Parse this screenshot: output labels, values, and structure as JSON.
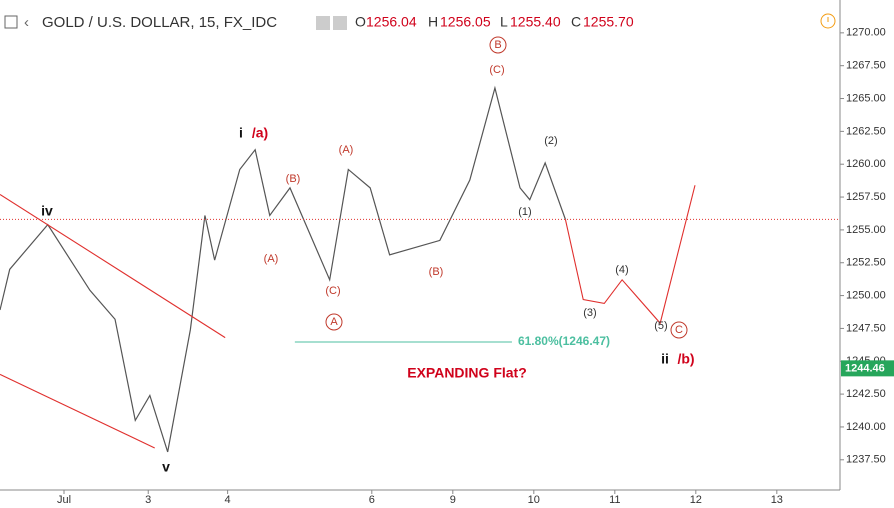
{
  "header": {
    "symbol": "GOLD / U.S. DOLLAR, 15, FX_IDC",
    "o": "O",
    "open": "1256.04",
    "h": "H",
    "high": "1256.05",
    "l": "L",
    "low": "1255.40",
    "c": "C",
    "close": "1255.70"
  },
  "chart_data": {
    "type": "line",
    "xlim": [
      -0.79,
      9.58
    ],
    "ylim": [
      1235.2,
      1272.5
    ],
    "xticks": [
      {
        "value": 0,
        "label": "Jul"
      },
      {
        "value": 1.04,
        "label": "3"
      },
      {
        "value": 2.02,
        "label": "4"
      },
      {
        "value": 3.8,
        "label": "6"
      },
      {
        "value": 4.8,
        "label": "9"
      },
      {
        "value": 5.8,
        "label": "10"
      },
      {
        "value": 6.8,
        "label": "11"
      },
      {
        "value": 7.8,
        "label": "12"
      },
      {
        "value": 8.8,
        "label": "13"
      }
    ],
    "yticks": [
      {
        "value": 1237.5,
        "label": "1237.50"
      },
      {
        "value": 1240,
        "label": "1240.00"
      },
      {
        "value": 1242.5,
        "label": "1242.50"
      },
      {
        "value": 1245,
        "label": "1245.00"
      },
      {
        "value": 1247.5,
        "label": "1247.50"
      },
      {
        "value": 1250,
        "label": "1250.00"
      },
      {
        "value": 1252.5,
        "label": "1252.50"
      },
      {
        "value": 1255,
        "label": "1255.00"
      },
      {
        "value": 1257.5,
        "label": "1257.50"
      },
      {
        "value": 1260,
        "label": "1260.00"
      },
      {
        "value": 1262.5,
        "label": "1262.50"
      },
      {
        "value": 1265,
        "label": "1265.00"
      },
      {
        "value": 1267.5,
        "label": "1267.50"
      },
      {
        "value": 1270,
        "label": "1270.00"
      }
    ],
    "series": [
      {
        "color": "#555555",
        "x": [
          -0.79,
          -0.67,
          -0.2,
          0.32,
          0.63,
          0.88,
          1.06,
          1.28,
          1.56,
          1.74,
          1.86,
          2.17,
          2.36,
          2.54,
          2.79,
          3.28,
          3.51,
          3.78,
          4.02,
          4.64,
          5.01,
          5.32,
          5.63,
          5.75,
          5.94,
          6.19
        ],
        "values": [
          1248.9,
          1252,
          1255.4,
          1250.4,
          1248.2,
          1240.5,
          1242.4,
          1238.1,
          1247.4,
          1256.1,
          1252.7,
          1259.6,
          1261.1,
          1256.1,
          1258.2,
          1251.2,
          1259.6,
          1258.2,
          1253.1,
          1254.2,
          1258.8,
          1265.8,
          1258.2,
          1257.3,
          1260.1,
          1255.8
        ]
      },
      {
        "color": "#e0302e",
        "x": [
          6.19,
          6.41,
          6.67,
          6.89,
          7.36,
          7.79
        ],
        "values": [
          1255.8,
          1249.7,
          1249.4,
          1251.2,
          1247.9,
          1258.4
        ]
      },
      {
        "color": "#e0302e",
        "x": [
          -0.79,
          1.99
        ],
        "values": [
          1257.7,
          1246.8
        ]
      },
      {
        "color": "#e0302e",
        "x": [
          -0.79,
          1.12
        ],
        "values": [
          1244.0,
          1238.4
        ]
      }
    ],
    "fib": {
      "value": 1246.47,
      "label": "61.80%(1246.47)",
      "x": [
        2.85,
        5.53
      ],
      "color": "#4cbfa0"
    },
    "last_price": 1244.46,
    "last_price_color": "#26a65b",
    "annotations": [
      {
        "text": "iv",
        "color": "#111"
      },
      {
        "text": "v",
        "color": "#111"
      },
      {
        "text": "i",
        "color": "#111"
      },
      {
        "text": "/a)",
        "color": "#d0021b"
      },
      {
        "text": "(B)",
        "color": "#c0392b"
      },
      {
        "text": "(A)",
        "color": "#c0392b"
      },
      {
        "text": "(C)",
        "color": "#c0392b"
      },
      {
        "text": "A",
        "color": "#c0392b",
        "circled": true
      },
      {
        "text": "(A)",
        "color": "#c0392b"
      },
      {
        "text": "(B)",
        "color": "#c0392b"
      },
      {
        "text": "(C)",
        "color": "#c0392b"
      },
      {
        "text": "B",
        "color": "#c0392b",
        "circled": true
      },
      {
        "text": "(1)",
        "color": "#333"
      },
      {
        "text": "(2)",
        "color": "#333"
      },
      {
        "text": "(3)",
        "color": "#333"
      },
      {
        "text": "(4)",
        "color": "#333"
      },
      {
        "text": "(5)",
        "color": "#333"
      },
      {
        "text": "C",
        "color": "#c0392b",
        "circled": true
      },
      {
        "text": "ii",
        "color": "#111"
      },
      {
        "text": "/b)",
        "color": "#d0021b"
      },
      {
        "text": "EXPANDING Flat?",
        "color": "#d0021b"
      }
    ]
  }
}
